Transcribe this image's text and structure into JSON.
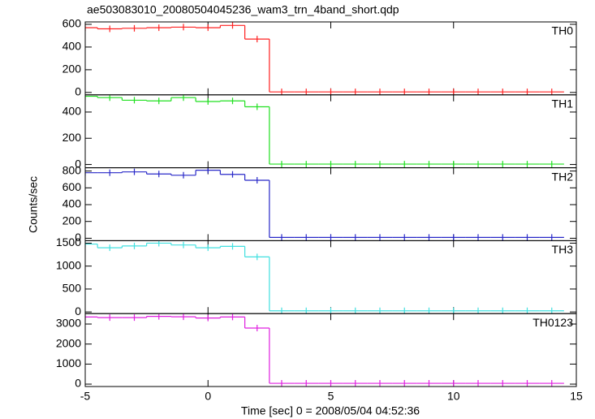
{
  "title": "ae503083010_20080504045236_wam3_trn_4band_short.qdp",
  "y_label": "Counts/sec",
  "x_axis": {
    "label": "Time [sec] 0 = 2008/05/04 04:52:36",
    "xlim": [
      -5,
      15
    ],
    "xticks": [
      -5,
      0,
      5,
      10,
      15
    ]
  },
  "chart_data": [
    {
      "type": "histogram",
      "label": "TH0",
      "color": "#ff2020",
      "bins": [
        -5.5,
        -4.5,
        -3.5,
        -2.5,
        -1.5,
        -0.5,
        0.5,
        1.5,
        2.5,
        3.5,
        4.5,
        5.5,
        6.5,
        7.5,
        8.5,
        9.5,
        10.5,
        11.5,
        12.5,
        13.5,
        14.5
      ],
      "values": [
        570,
        560,
        565,
        570,
        575,
        570,
        590,
        470,
        5,
        5,
        5,
        5,
        5,
        5,
        5,
        5,
        5,
        5,
        5,
        5
      ],
      "ylim": [
        -21,
        621
      ],
      "yticks": [
        0,
        200,
        400,
        600
      ]
    },
    {
      "type": "histogram",
      "label": "TH1",
      "color": "#20e020",
      "bins": [
        -5.5,
        -4.5,
        -3.5,
        -2.5,
        -1.5,
        -0.5,
        0.5,
        1.5,
        2.5,
        3.5,
        4.5,
        5.5,
        6.5,
        7.5,
        8.5,
        9.5,
        10.5,
        11.5,
        12.5,
        13.5,
        14.5
      ],
      "values": [
        520,
        510,
        490,
        485,
        510,
        480,
        485,
        440,
        3,
        3,
        3,
        3,
        3,
        3,
        3,
        3,
        3,
        3,
        3,
        3
      ],
      "ylim": [
        -25,
        531
      ],
      "yticks": [
        0,
        200,
        400
      ]
    },
    {
      "type": "histogram",
      "label": "TH2",
      "color": "#2828c8",
      "bins": [
        -5.5,
        -4.5,
        -3.5,
        -2.5,
        -1.5,
        -0.5,
        0.5,
        1.5,
        2.5,
        3.5,
        4.5,
        5.5,
        6.5,
        7.5,
        8.5,
        9.5,
        10.5,
        11.5,
        12.5,
        13.5,
        14.5
      ],
      "values": [
        780,
        780,
        790,
        765,
        750,
        810,
        760,
        690,
        10,
        10,
        10,
        10,
        10,
        10,
        10,
        10,
        10,
        10,
        10,
        10
      ],
      "ylim": [
        -29,
        839
      ],
      "yticks": [
        0,
        200,
        400,
        600,
        800
      ]
    },
    {
      "type": "histogram",
      "label": "TH3",
      "color": "#40e0e0",
      "bins": [
        -5.5,
        -4.5,
        -3.5,
        -2.5,
        -1.5,
        -0.5,
        0.5,
        1.5,
        2.5,
        3.5,
        4.5,
        5.5,
        6.5,
        7.5,
        8.5,
        9.5,
        10.5,
        11.5,
        12.5,
        13.5,
        14.5
      ],
      "values": [
        1480,
        1400,
        1440,
        1500,
        1460,
        1400,
        1430,
        1200,
        25,
        25,
        25,
        25,
        25,
        25,
        25,
        25,
        25,
        25,
        25,
        25
      ],
      "ylim": [
        -36,
        1554
      ],
      "yticks": [
        0,
        500,
        1000,
        1500
      ]
    },
    {
      "type": "histogram",
      "label": "TH0123",
      "color": "#e020e0",
      "bins": [
        -5.5,
        -4.5,
        -3.5,
        -2.5,
        -1.5,
        -0.5,
        0.5,
        1.5,
        2.5,
        3.5,
        4.5,
        5.5,
        6.5,
        7.5,
        8.5,
        9.5,
        10.5,
        11.5,
        12.5,
        13.5,
        14.5
      ],
      "values": [
        3350,
        3320,
        3320,
        3380,
        3360,
        3300,
        3350,
        2800,
        40,
        40,
        40,
        40,
        40,
        40,
        40,
        40,
        40,
        40,
        40,
        40
      ],
      "ylim": [
        -120,
        3520
      ],
      "yticks": [
        0,
        1000,
        2000,
        3000
      ]
    }
  ]
}
